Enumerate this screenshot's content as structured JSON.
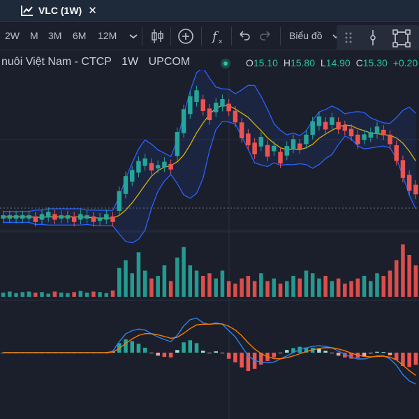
{
  "tab": {
    "title": "VLC (1W)",
    "icon": "chart-icon",
    "close_glyph": "✕"
  },
  "toolbar": {
    "timeframes": [
      "2W",
      "M",
      "3M",
      "6M",
      "12M"
    ],
    "chart_style_label": "Biểu đồ",
    "icons": [
      "chevron-down-icon",
      "candlestick-icon",
      "add-indicator-icon",
      "function-icon",
      "undo-icon",
      "redo-icon",
      "dots-handle-icon",
      "cursor-line-icon",
      "select-rectangle-icon"
    ]
  },
  "header": {
    "symbol_name": "nuôi Việt Nam - CTCP",
    "interval": "1W",
    "exchange": "UPCOM",
    "status_color": "#26c6a0",
    "ohlc": [
      {
        "key": "O",
        "value": "15.10"
      },
      {
        "key": "H",
        "value": "15.80"
      },
      {
        "key": "L",
        "value": "14.90"
      },
      {
        "key": "C",
        "value": "15.30"
      }
    ],
    "change": "+0.20"
  },
  "colors": {
    "up": "#26a69a",
    "down": "#ef5350",
    "bollinger": "#2962ff",
    "basis": "#d4b106",
    "macd": "#2f80ed",
    "signal": "#f57c00"
  },
  "chart_data": {
    "type": "candlestick",
    "price_midpoints": [
      11.4,
      11.4,
      11.4,
      11.4,
      11.4,
      11.3,
      11.4,
      11.5,
      11.4,
      11.4,
      11.4,
      11.3,
      11.4,
      11.4,
      11.3,
      11.3,
      11.4,
      11.3,
      12.1,
      12.8,
      13.2,
      13.6,
      13.8,
      13.6,
      13.6,
      13.7,
      13.6,
      14.6,
      15.6,
      16.3,
      16.7,
      16.3,
      15.9,
      16.2,
      16.4,
      16.2,
      15.8,
      15.2,
      14.8,
      14.4,
      14.7,
      14.3,
      14.4,
      14.0,
      14.3,
      14.6,
      14.5,
      14.8,
      15.3,
      15.6,
      15.4,
      15.6,
      15.4,
      15.3,
      15.1,
      14.8,
      14.9,
      15.0,
      15.2,
      15.1,
      14.8,
      14.2,
      13.5,
      12.9,
      12.6
    ],
    "volume_level": [
      0.08,
      0.1,
      0.07,
      0.09,
      0.1,
      0.08,
      0.09,
      0.06,
      0.1,
      0.08,
      0.07,
      0.09,
      0.11,
      0.08,
      0.1,
      0.09,
      0.07,
      0.12,
      0.55,
      0.7,
      0.45,
      0.85,
      0.5,
      0.35,
      0.4,
      0.6,
      0.3,
      0.75,
      0.95,
      0.6,
      0.5,
      0.4,
      0.45,
      0.35,
      0.5,
      0.3,
      0.25,
      0.35,
      0.4,
      0.3,
      0.45,
      0.3,
      0.35,
      0.25,
      0.3,
      0.4,
      0.35,
      0.5,
      0.45,
      0.35,
      0.4,
      0.3,
      0.35,
      0.25,
      0.3,
      0.35,
      0.4,
      0.3,
      0.45,
      0.4,
      0.5,
      0.7,
      1.0,
      0.8,
      0.6
    ],
    "macd": [
      0.0,
      0.0,
      0.0,
      0.0,
      0.0,
      0.0,
      0.0,
      0.0,
      0.0,
      0.0,
      0.0,
      0.0,
      0.0,
      0.0,
      0.0,
      0.0,
      0.0,
      0.05,
      0.35,
      0.6,
      0.7,
      0.75,
      0.72,
      0.6,
      0.5,
      0.42,
      0.35,
      0.55,
      0.85,
      1.05,
      1.1,
      0.95,
      0.9,
      0.95,
      0.9,
      0.7,
      0.5,
      0.2,
      -0.1,
      -0.25,
      -0.3,
      -0.32,
      -0.3,
      -0.2,
      -0.1,
      0.0,
      0.1,
      0.15,
      0.2,
      0.22,
      0.2,
      0.15,
      0.05,
      -0.05,
      -0.15,
      -0.2,
      -0.2,
      -0.15,
      -0.1,
      -0.1,
      -0.2,
      -0.4,
      -0.7,
      -0.9,
      -1.0
    ]
  }
}
